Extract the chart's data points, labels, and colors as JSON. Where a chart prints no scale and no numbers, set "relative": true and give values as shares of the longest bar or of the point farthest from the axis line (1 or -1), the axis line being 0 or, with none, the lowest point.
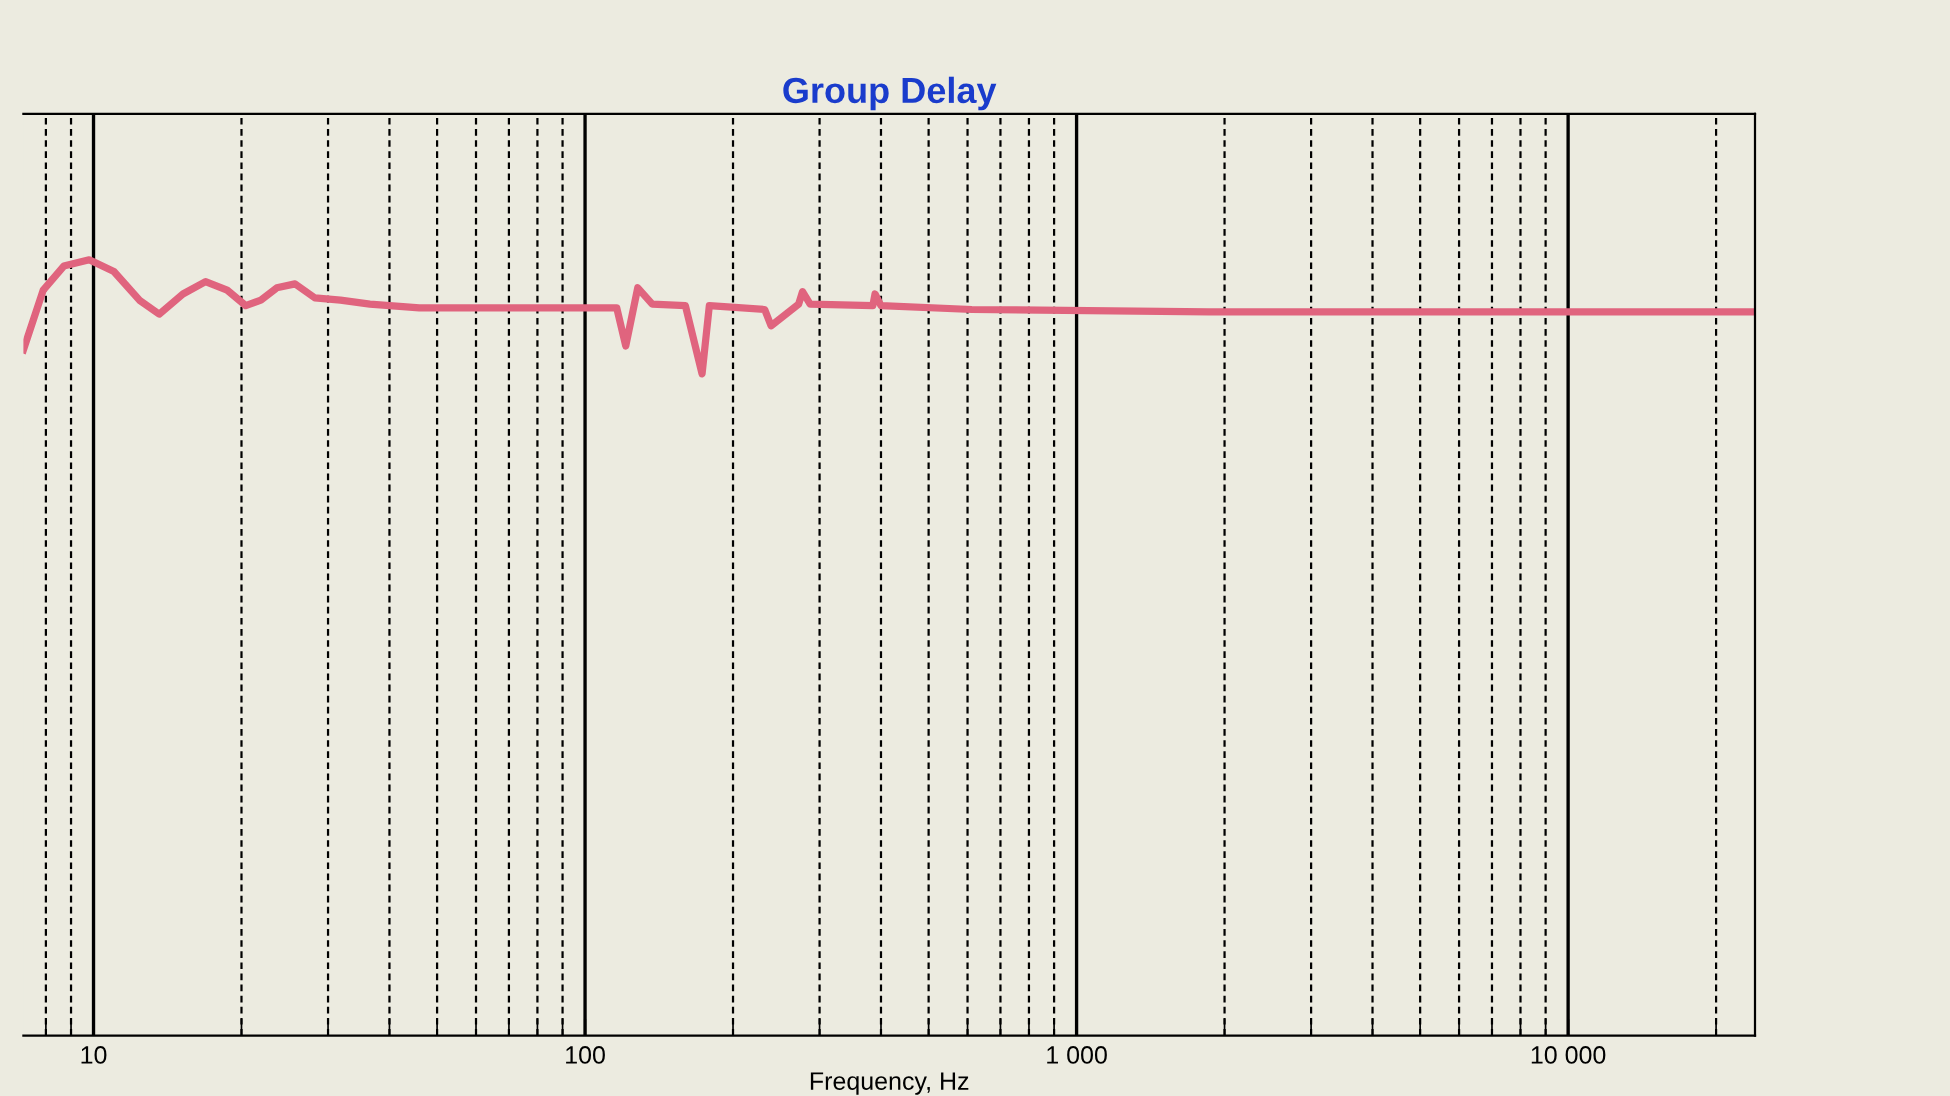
{
  "chart_data": {
    "type": "line",
    "title": "Group Delay",
    "xlabel": "Frequency, Hz",
    "log": "x",
    "relative": true,
    "grid": "x",
    "legend": false,
    "marker": "none",
    "line_style": "solid",
    "xlim": [
      7.2,
      24000
    ],
    "xticks": [
      10,
      100,
      {
        "value": 1000,
        "label": "1 000"
      },
      {
        "value": 10000,
        "label": "10 000"
      }
    ],
    "series": [
      {
        "color": "#e0647e",
        "x": [
          7.2,
          7.9,
          8.7,
          9.8,
          11,
          12.4,
          13.6,
          15.2,
          16.9,
          18.7,
          20.4,
          21.9,
          23.6,
          25.7,
          28.2,
          31.8,
          36.5,
          46,
          73,
          106,
          116,
          121,
          128,
          137,
          160,
          173,
          179,
          232,
          239,
          272,
          277,
          287,
          385,
          389,
          400,
          612,
          1860,
          24000
        ],
        "values": [
          0.884,
          0.961,
          0.992,
          1,
          0.985,
          0.948,
          0.93,
          0.956,
          0.972,
          0.961,
          0.941,
          0.948,
          0.964,
          0.969,
          0.951,
          0.948,
          0.943,
          0.938,
          0.938,
          0.938,
          0.938,
          0.889,
          0.964,
          0.943,
          0.941,
          0.853,
          0.941,
          0.936,
          0.915,
          0.943,
          0.959,
          0.943,
          0.941,
          0.956,
          0.941,
          0.936,
          0.933,
          0.933
        ]
      }
    ]
  }
}
